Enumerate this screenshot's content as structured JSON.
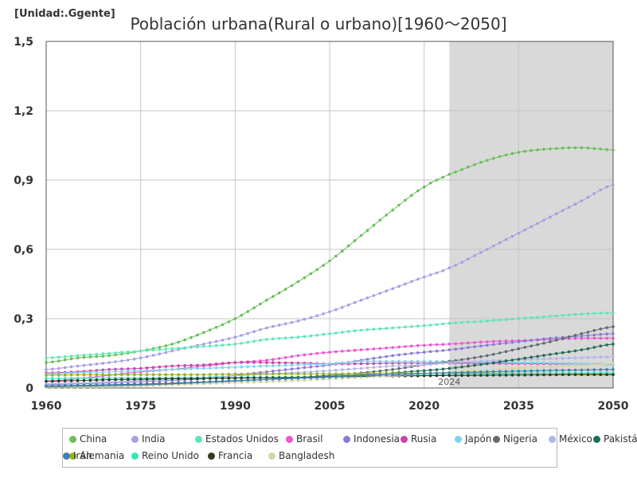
{
  "unit_label": "[Unidad:.Ggente]",
  "title": "Población urbana(Rural o urbano)[1960～2050]",
  "chart_data": {
    "type": "line",
    "title": "Población urbana(Rural o urbano)[1960～2050]",
    "unit": "[Unidad:.Ggente]",
    "xlim": [
      1960,
      2050
    ],
    "ylim": [
      0,
      1.5
    ],
    "x_ticks": [
      "1960",
      "1975",
      "1990",
      "2005",
      "2020",
      "2035",
      "2050"
    ],
    "y_ticks": [
      "0",
      "0,3",
      "0,6",
      "0,9",
      "1,2",
      "1,5"
    ],
    "grid": true,
    "legend_placement": "bottom",
    "forecast_from": 2024,
    "forecast_label": "2024",
    "forecast_shade_color": "#d9d9d9",
    "keypoint_x": [
      1960,
      1965,
      1970,
      1975,
      1980,
      1985,
      1990,
      1995,
      2000,
      2005,
      2010,
      2015,
      2020,
      2024,
      2030,
      2035,
      2040,
      2045,
      2050
    ],
    "series": [
      {
        "name": "China",
        "color": "#6abf59",
        "values": [
          0.11,
          0.13,
          0.14,
          0.16,
          0.19,
          0.24,
          0.3,
          0.38,
          0.46,
          0.55,
          0.66,
          0.77,
          0.87,
          0.925,
          0.985,
          1.02,
          1.035,
          1.04,
          1.03
        ]
      },
      {
        "name": "India",
        "color": "#a79ee3",
        "values": [
          0.08,
          0.095,
          0.11,
          0.13,
          0.16,
          0.19,
          0.22,
          0.26,
          0.29,
          0.33,
          0.38,
          0.43,
          0.48,
          0.52,
          0.6,
          0.67,
          0.74,
          0.81,
          0.88
        ]
      },
      {
        "name": "Estados Unidos",
        "color": "#5fe6b2",
        "values": [
          0.13,
          0.14,
          0.15,
          0.16,
          0.17,
          0.18,
          0.19,
          0.21,
          0.22,
          0.235,
          0.25,
          0.26,
          0.27,
          0.28,
          0.29,
          0.3,
          0.31,
          0.32,
          0.325
        ]
      },
      {
        "name": "Brasil",
        "color": "#ee55d2",
        "values": [
          0.03,
          0.04,
          0.055,
          0.07,
          0.08,
          0.095,
          0.11,
          0.12,
          0.14,
          0.155,
          0.165,
          0.175,
          0.185,
          0.19,
          0.2,
          0.205,
          0.21,
          0.215,
          0.215
        ]
      },
      {
        "name": "Indonesia",
        "color": "#8c78d6",
        "values": [
          0.015,
          0.018,
          0.022,
          0.027,
          0.033,
          0.04,
          0.055,
          0.07,
          0.085,
          0.1,
          0.12,
          0.14,
          0.155,
          0.165,
          0.185,
          0.2,
          0.215,
          0.225,
          0.235
        ]
      },
      {
        "name": "Rusia",
        "color": "#cc44a8",
        "values": [
          0.065,
          0.07,
          0.08,
          0.085,
          0.095,
          0.1,
          0.11,
          0.11,
          0.108,
          0.105,
          0.105,
          0.108,
          0.108,
          0.108,
          0.107,
          0.106,
          0.105,
          0.104,
          0.103
        ]
      },
      {
        "name": "Japón",
        "color": "#7dd3f2",
        "values": [
          0.06,
          0.065,
          0.07,
          0.075,
          0.08,
          0.085,
          0.09,
          0.095,
          0.1,
          0.105,
          0.115,
          0.115,
          0.115,
          0.114,
          0.112,
          0.11,
          0.108,
          0.105,
          0.1
        ]
      },
      {
        "name": "Nigeria",
        "color": "#5e6b73",
        "values": [
          0.006,
          0.008,
          0.01,
          0.013,
          0.018,
          0.024,
          0.03,
          0.037,
          0.045,
          0.055,
          0.065,
          0.08,
          0.1,
          0.115,
          0.14,
          0.17,
          0.2,
          0.235,
          0.265
        ]
      },
      {
        "name": "México",
        "color": "#aeb7ea",
        "values": [
          0.018,
          0.022,
          0.027,
          0.033,
          0.04,
          0.046,
          0.052,
          0.06,
          0.067,
          0.075,
          0.085,
          0.095,
          0.1,
          0.11,
          0.117,
          0.122,
          0.127,
          0.131,
          0.135
        ]
      },
      {
        "name": "Pakistán",
        "color": "#1f6b57",
        "values": [
          0.009,
          0.011,
          0.014,
          0.017,
          0.021,
          0.026,
          0.031,
          0.037,
          0.043,
          0.05,
          0.057,
          0.065,
          0.075,
          0.085,
          0.105,
          0.125,
          0.145,
          0.165,
          0.19
        ]
      },
      {
        "name": "Alemania",
        "color": "#9ab01f",
        "values": [
          0.055,
          0.057,
          0.058,
          0.058,
          0.058,
          0.058,
          0.06,
          0.061,
          0.061,
          0.061,
          0.062,
          0.063,
          0.064,
          0.064,
          0.064,
          0.063,
          0.062,
          0.061,
          0.06
        ]
      },
      {
        "name": "Reino Unido",
        "color": "#33e8b8",
        "values": [
          0.041,
          0.042,
          0.043,
          0.043,
          0.044,
          0.044,
          0.045,
          0.046,
          0.047,
          0.048,
          0.051,
          0.053,
          0.056,
          0.058,
          0.06,
          0.062,
          0.063,
          0.064,
          0.065
        ]
      },
      {
        "name": "Francia",
        "color": "#2e3b1f",
        "values": [
          0.029,
          0.032,
          0.036,
          0.038,
          0.04,
          0.041,
          0.043,
          0.044,
          0.045,
          0.048,
          0.05,
          0.052,
          0.053,
          0.054,
          0.055,
          0.056,
          0.057,
          0.058,
          0.058
        ]
      },
      {
        "name": "Bangladesh",
        "color": "#cfd8a6",
        "values": [
          0.003,
          0.004,
          0.006,
          0.009,
          0.014,
          0.018,
          0.023,
          0.027,
          0.033,
          0.039,
          0.046,
          0.054,
          0.062,
          0.068,
          0.077,
          0.085,
          0.092,
          0.098,
          0.105
        ]
      },
      {
        "name": "Irán",
        "color": "#3f7fb5",
        "values": [
          0.008,
          0.01,
          0.013,
          0.016,
          0.02,
          0.026,
          0.032,
          0.037,
          0.042,
          0.047,
          0.053,
          0.058,
          0.063,
          0.066,
          0.07,
          0.073,
          0.076,
          0.078,
          0.08
        ]
      }
    ]
  }
}
